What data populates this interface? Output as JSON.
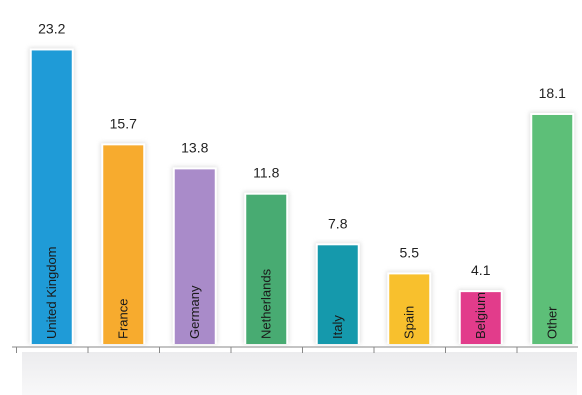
{
  "chart_data": {
    "type": "bar",
    "categories": [
      "United Kingdom",
      "France",
      "Germany",
      "Netherlands",
      "Italy",
      "Spain",
      "Belgium",
      "Other"
    ],
    "values": [
      23.2,
      15.7,
      13.8,
      11.8,
      7.8,
      5.5,
      4.1,
      18.1
    ],
    "value_labels": [
      "23.2",
      "15.7",
      "13.8",
      "11.8",
      "7.8",
      "5.5",
      "4.1",
      "18.1"
    ],
    "colors": [
      "#1f9bd7",
      "#f7ab2e",
      "#a98bc9",
      "#48ab72",
      "#1599ac",
      "#f8c02d",
      "#e23c8b",
      "#5dbf78"
    ],
    "title": "",
    "xlabel": "",
    "ylabel": "",
    "ylim": [
      0,
      24.5
    ],
    "grid": false,
    "legend": "none"
  }
}
